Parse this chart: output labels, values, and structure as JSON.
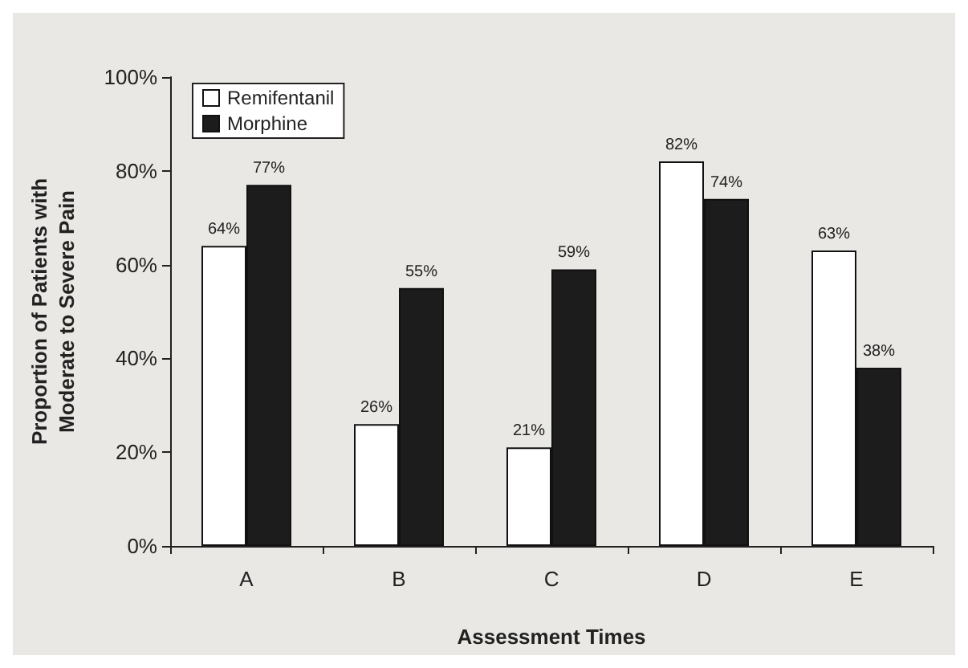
{
  "chart_data": {
    "type": "bar",
    "xlabel": "Assessment Times",
    "ylabel": "Proportion of Patients with\nModerate to Severe Pain",
    "categories": [
      "A",
      "B",
      "C",
      "D",
      "E"
    ],
    "series": [
      {
        "name": "Remifentanil",
        "color": "#ffffff",
        "values": [
          64,
          26,
          21,
          82,
          63
        ],
        "value_labels": [
          "64%",
          "26%",
          "21%",
          "82%",
          "63%"
        ]
      },
      {
        "name": "Morphine",
        "color": "#1c1c1c",
        "values": [
          77,
          55,
          59,
          74,
          38
        ],
        "value_labels": [
          "77%",
          "55%",
          "59%",
          "74%",
          "38%"
        ]
      }
    ],
    "ylim": [
      0,
      100
    ],
    "yticks": [
      {
        "value": 0,
        "label": "0%"
      },
      {
        "value": 20,
        "label": "20%"
      },
      {
        "value": 40,
        "label": "40%"
      },
      {
        "value": 60,
        "label": "60%"
      },
      {
        "value": 80,
        "label": "80%"
      },
      {
        "value": 100,
        "label": "100%"
      }
    ],
    "grid": false,
    "legend": "top left"
  }
}
